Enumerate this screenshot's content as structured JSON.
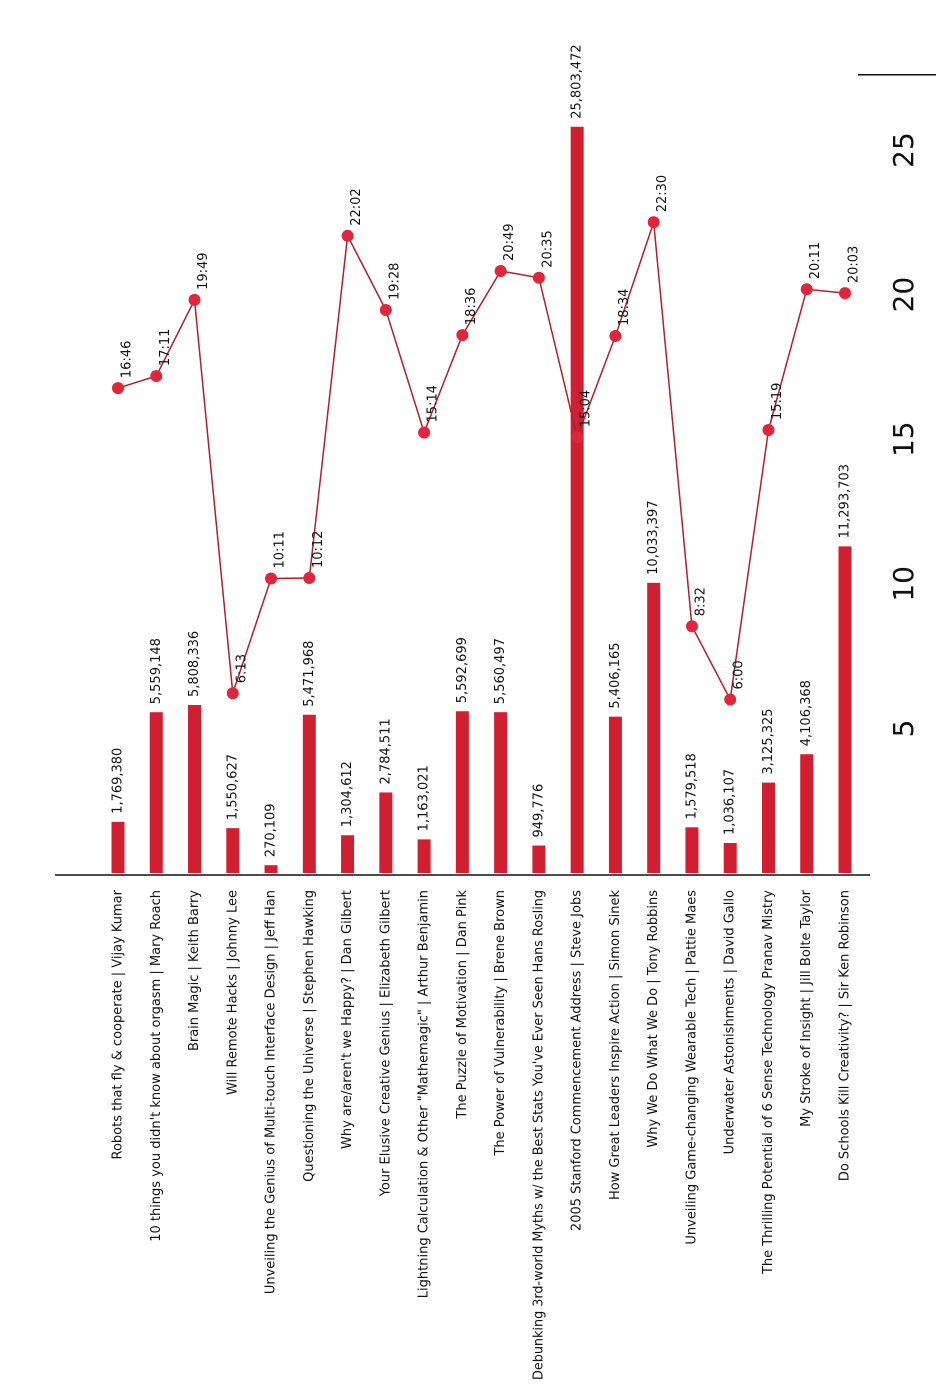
{
  "chart_data": {
    "type": "bar",
    "categories": [
      "Robots that fly & cooperate | Vijay Kumar",
      "10 things you didn't know about orgasm | Mary Roach",
      "Brain Magic | Keith Barry",
      "Will Remote Hacks | Johnny Lee",
      "Unveiling the Genius of Multi-touch Interface Design | Jeff Han",
      "Questioning the Universe | Stephen Hawking",
      "Why are/aren't we Happy? | Dan Gilbert",
      "Your Elusive Creative Genius | Elizabeth Gilbert",
      "Lightning Calculation & Other \"Mathemagic\" | Arthur Benjamin",
      "The Puzzle of Motivation | Dan Pink",
      "The Power of Vulnerability | Brene Brown",
      "Debunking 3rd-world Myths w/ the Best Stats You've Ever Seen Hans Rosling",
      "2005 Stanford Commencement Address | Steve Jobs",
      "How Great Leaders Inspire Action | Simon Sinek",
      "Why We Do What We Do | Tony Robbins",
      "Unveiling Game-changing Wearable Tech | Pattie Maes",
      "Underwater Astonishments | David Gallo",
      "The Thrilling Potential of 6 Sense Technology Pranav Mistry",
      "My Stroke of Insight | Jill Bolte Taylor",
      "Do Schools Kill Creativity? | Sir Ken Robinson"
    ],
    "series": [
      {
        "type": "bar",
        "color": "#d01f30",
        "values": [
          1.76938,
          5.559148,
          5.808336,
          1.550627,
          0.270109,
          5.471968,
          1.304612,
          2.784511,
          1.163021,
          5.592699,
          5.560497,
          0.949776,
          25.803472,
          5.406165,
          10.033397,
          1.579518,
          1.036107,
          3.125325,
          4.106368,
          11.293703
        ],
        "value_labels": [
          "1,769,380",
          "5,559,148",
          "5,808,336",
          "1,550,627",
          "270,109",
          "5,471,968",
          "1,304,612",
          "2,784,511",
          "1,163,021",
          "5,592,699",
          "5,560,497",
          "949,776",
          "25,803,472",
          "5,406,165",
          "10,033,397",
          "1,579,518",
          "1,036,107",
          "3,125,325",
          "4,106,368",
          "11,293,703"
        ]
      },
      {
        "type": "line",
        "color": "#b21f2d",
        "marker_color": "#e0263a",
        "values": [
          16.767,
          17.183,
          19.817,
          6.217,
          10.183,
          10.2,
          22.033,
          19.467,
          15.233,
          18.6,
          20.817,
          20.583,
          15.067,
          18.567,
          22.5,
          8.533,
          6.0,
          15.317,
          20.183,
          20.05
        ],
        "value_labels": [
          "16:46",
          "17:11",
          "19:49",
          "6:13",
          "10:11",
          "10:12",
          "22:02",
          "19:28",
          "15:14",
          "18:36",
          "20:49",
          "20:35",
          "15:04",
          "18:34",
          "22:30",
          "8:32",
          "6:00",
          "15:19",
          "20:11",
          "20:03"
        ]
      }
    ],
    "ylim": [
      0,
      27.6
    ],
    "yticks": [
      5,
      10,
      15,
      20,
      25
    ]
  }
}
